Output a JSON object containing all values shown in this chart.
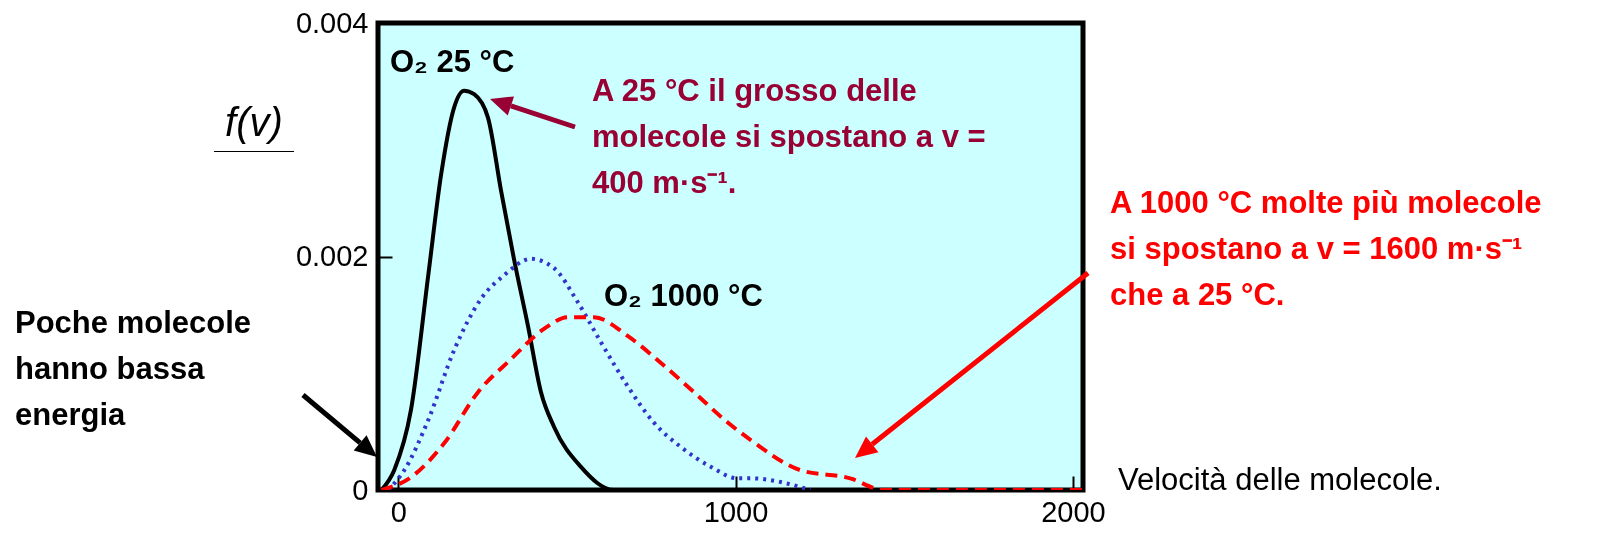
{
  "chart_data": {
    "type": "line",
    "xlabel": "Velocità delle molecole.",
    "ylabel": "f(v)",
    "xlim": [
      -60,
      2030
    ],
    "ylim": [
      0,
      0.004
    ],
    "xticks": [
      0,
      1000,
      2000
    ],
    "yticks": [
      0,
      0.002,
      0.004
    ],
    "grid": false,
    "legend": false,
    "marker": "none",
    "series": [
      {
        "name": "O₂ 25 °C",
        "color": "#000000",
        "line_style": "solid",
        "x": [
          -50,
          -12,
          38,
          89,
          127,
          166,
          195,
          225,
          266,
          305,
          343,
          385,
          423,
          462,
          541,
          639,
          700,
          1000
        ],
        "values": [
          0,
          0.00017,
          0.00069,
          0.00184,
          0.0027,
          0.00328,
          0.00342,
          0.00339,
          0.00319,
          0.00256,
          0.00198,
          0.0014,
          0.00084,
          0.00054,
          0.0002,
          0,
          0,
          0
        ]
      },
      {
        "color": "#3333cc",
        "line_style": "dotted",
        "x": [
          -30,
          18,
          89,
          166,
          246,
          314,
          393,
          462,
          532,
          600,
          680,
          757,
          837,
          926,
          1006,
          1044,
          1222
        ],
        "values": [
          0,
          0.00017,
          0.0006,
          0.0012,
          0.00164,
          0.00184,
          0.00198,
          0.0019,
          0.00161,
          0.00127,
          0.00089,
          0.00058,
          0.00037,
          0.0002,
          0.0001,
          0.0001,
          0
        ]
      },
      {
        "name": "O₂ 1000 °C",
        "color": "#ff0000",
        "line_style": "dashed",
        "x": [
          -50,
          38,
          136,
          237,
          334,
          432,
          503,
          580,
          680,
          778,
          876,
          976,
          1044,
          1192,
          1340,
          1438,
          1586,
          2030
        ],
        "values": [
          0,
          0.00011,
          0.0004,
          0.00084,
          0.00112,
          0.00138,
          0.00148,
          0.00148,
          0.00132,
          0.00109,
          0.00084,
          0.00058,
          0.00043,
          0.00017,
          0.0001,
          0,
          0,
          0
        ]
      }
    ],
    "annotations": [
      "A 25 °C il grosso delle molecole si spostano a v = 400 m·s⁻¹.",
      "A 1000 °C molte più molecole si spostano a v = 1600 m·s⁻¹ che a 25 °C.",
      "Poche molecole hanno bassa energia"
    ]
  }
}
